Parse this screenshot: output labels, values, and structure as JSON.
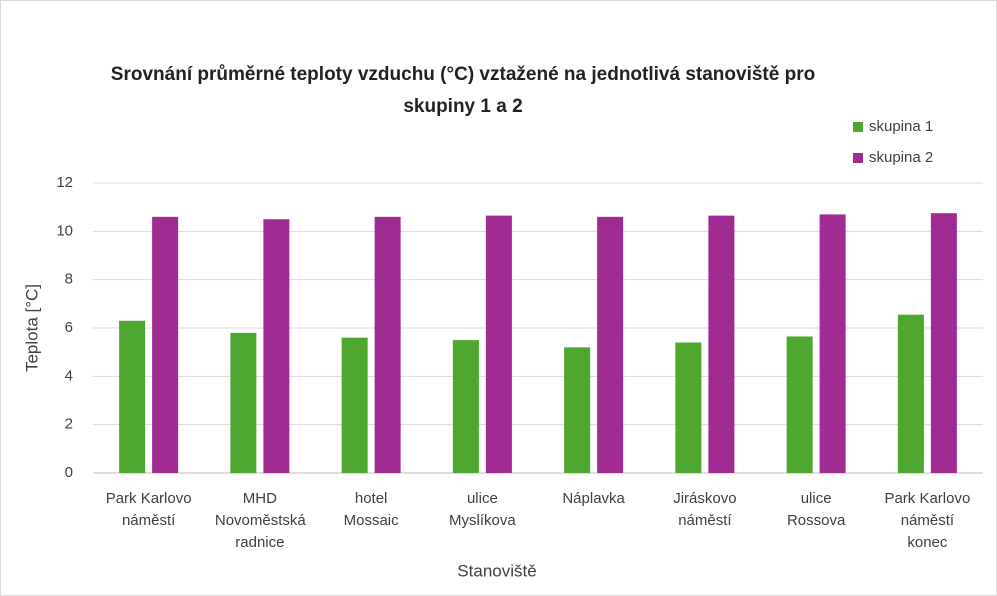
{
  "chart_data": {
    "type": "bar",
    "title": "Srovnání průměrné teploty vzduchu (°C) vztažené na jednotlivá stanoviště pro skupiny 1 a 2",
    "x_label": "Stanoviště",
    "y_label": "Teplota [°C]",
    "categories": [
      "Park Karlovo náměstí",
      "MHD Novoměstská radnice",
      "hotel Mossaic",
      "ulice Myslíkova",
      "Náplavka",
      "Jiráskovo náměstí",
      "ulice Rossova",
      "Park Karlovo náměstí konec"
    ],
    "series": [
      {
        "name": "skupina 1",
        "color": "#4ea72e",
        "values": [
          6.3,
          5.8,
          5.6,
          5.5,
          5.2,
          5.4,
          5.65,
          6.55
        ]
      },
      {
        "name": "skupina 2",
        "color": "#a02b93",
        "values": [
          10.6,
          10.5,
          10.6,
          10.65,
          10.6,
          10.65,
          10.7,
          10.75
        ]
      }
    ],
    "ylim": [
      0,
      12
    ],
    "yticks": [
      0,
      2,
      4,
      6,
      8,
      10,
      12
    ],
    "grid": true,
    "legend": "top-right"
  }
}
